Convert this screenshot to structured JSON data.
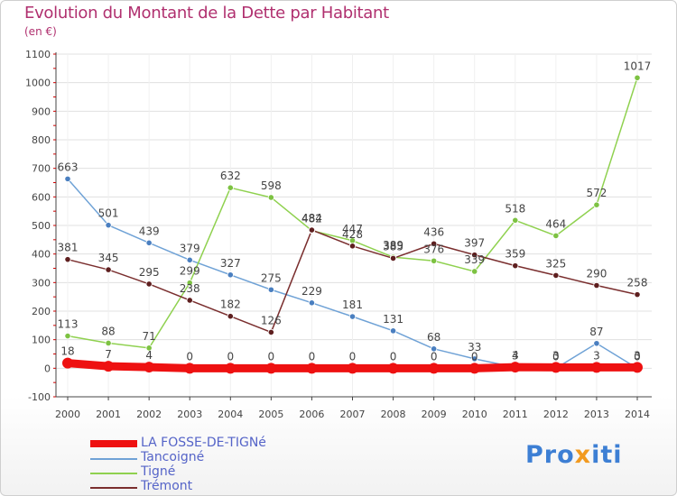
{
  "header": {
    "title": "Evolution du Montant de la Dette par Habitant",
    "unit": "(en €)"
  },
  "logo": {
    "parts": [
      "Pro",
      "x",
      "iti"
    ]
  },
  "colors": {
    "title": "#b0306f",
    "axis": "#444444",
    "grid": "#e0e0e0",
    "tick_red": "#cc0000"
  },
  "chart_data": {
    "type": "line",
    "title": "Evolution du Montant de la Dette par Habitant",
    "ylabel": "(en €)",
    "xlabel": "",
    "ylim": [
      -100,
      1100
    ],
    "yticks": [
      -100,
      0,
      100,
      200,
      300,
      400,
      500,
      600,
      700,
      800,
      900,
      1000,
      1100
    ],
    "categories": [
      "2000",
      "2001",
      "2002",
      "2003",
      "2004",
      "2005",
      "2006",
      "2007",
      "2008",
      "2009",
      "2010",
      "2011",
      "2012",
      "2013",
      "2014"
    ],
    "series": [
      {
        "name": "Tancoigné",
        "color": "#6fa2d6",
        "marker": "#4a7fc0",
        "label_color": "#444444",
        "values": [
          663,
          501,
          439,
          379,
          327,
          275,
          229,
          181,
          131,
          68,
          33,
          3,
          0,
          87,
          0
        ]
      },
      {
        "name": "Tigné",
        "color": "#8fd14f",
        "marker": "#7dc242",
        "label_color": "#444444",
        "values": [
          113,
          88,
          71,
          299,
          632,
          598,
          482,
          447,
          389,
          376,
          339,
          518,
          464,
          572,
          1017
        ]
      },
      {
        "name": "Trémont",
        "color": "#7a2e2e",
        "marker": "#5e1f1f",
        "label_color": "#444444",
        "values": [
          381,
          345,
          295,
          238,
          182,
          126,
          484,
          428,
          385,
          436,
          397,
          359,
          325,
          290,
          258
        ]
      },
      {
        "name": "LA FOSSE-DE-TIGNé",
        "color": "#ee1111",
        "marker": "#ee1111",
        "label_color": "#444444",
        "thick": true,
        "values": [
          18,
          7,
          4,
          0,
          0,
          0,
          0,
          0,
          0,
          0,
          0,
          4,
          3,
          3,
          3
        ]
      }
    ]
  },
  "legend": [
    {
      "name": "LA FOSSE-DE-TIGNé",
      "color": "#ee1111",
      "label_color": "#5564c8",
      "thick": true
    },
    {
      "name": "Tancoigné",
      "color": "#6fa2d6",
      "label_color": "#5564c8"
    },
    {
      "name": "Tigné",
      "color": "#8fd14f",
      "label_color": "#5564c8"
    },
    {
      "name": "Trémont",
      "color": "#7a2e2e",
      "label_color": "#5564c8"
    }
  ]
}
